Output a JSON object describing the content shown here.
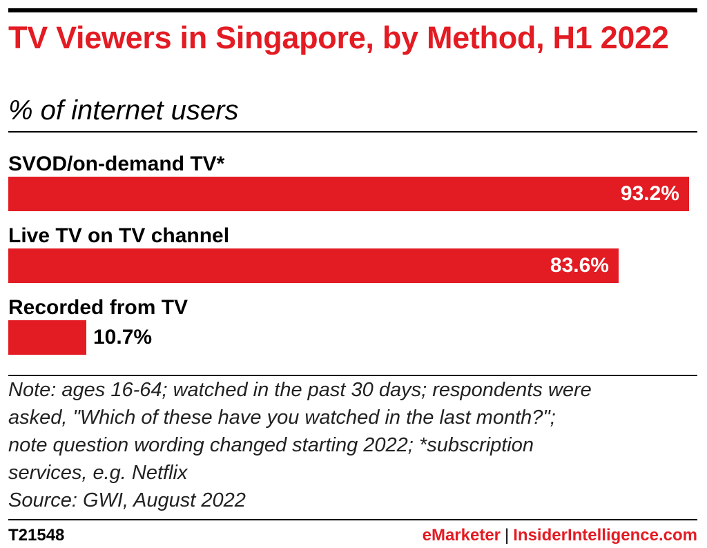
{
  "header": {
    "title": "TV Viewers in Singapore, by Method, H1 2022",
    "subtitle": "% of internet users"
  },
  "colors": {
    "bar": "#e31b23",
    "accent": "#e31b23",
    "text": "#000000"
  },
  "chart_data": {
    "type": "bar",
    "orientation": "horizontal",
    "title": "TV Viewers in Singapore, by Method, H1 2022",
    "subtitle": "% of internet users",
    "categories": [
      "SVOD/on-demand TV*",
      "Live TV on TV channel",
      "Recorded from TV"
    ],
    "values": [
      93.2,
      83.6,
      10.7
    ],
    "value_labels": [
      "93.2%",
      "83.6%",
      "10.7%"
    ],
    "xlim": [
      0,
      93.2
    ],
    "grid": false,
    "legend": "none"
  },
  "note": {
    "lines": [
      "Note: ages 16-64; watched in the past 30 days; respondents were",
      "asked, \"Which of these have you watched in the last month?\";",
      "note question wording changed starting 2022; *subscription",
      "services, e.g. Netflix",
      "Source: GWI, August 2022"
    ]
  },
  "footer": {
    "chart_id": "T21548",
    "brand_primary": "eMarketer",
    "separator": "|",
    "brand_secondary": "InsiderIntelligence.com"
  }
}
